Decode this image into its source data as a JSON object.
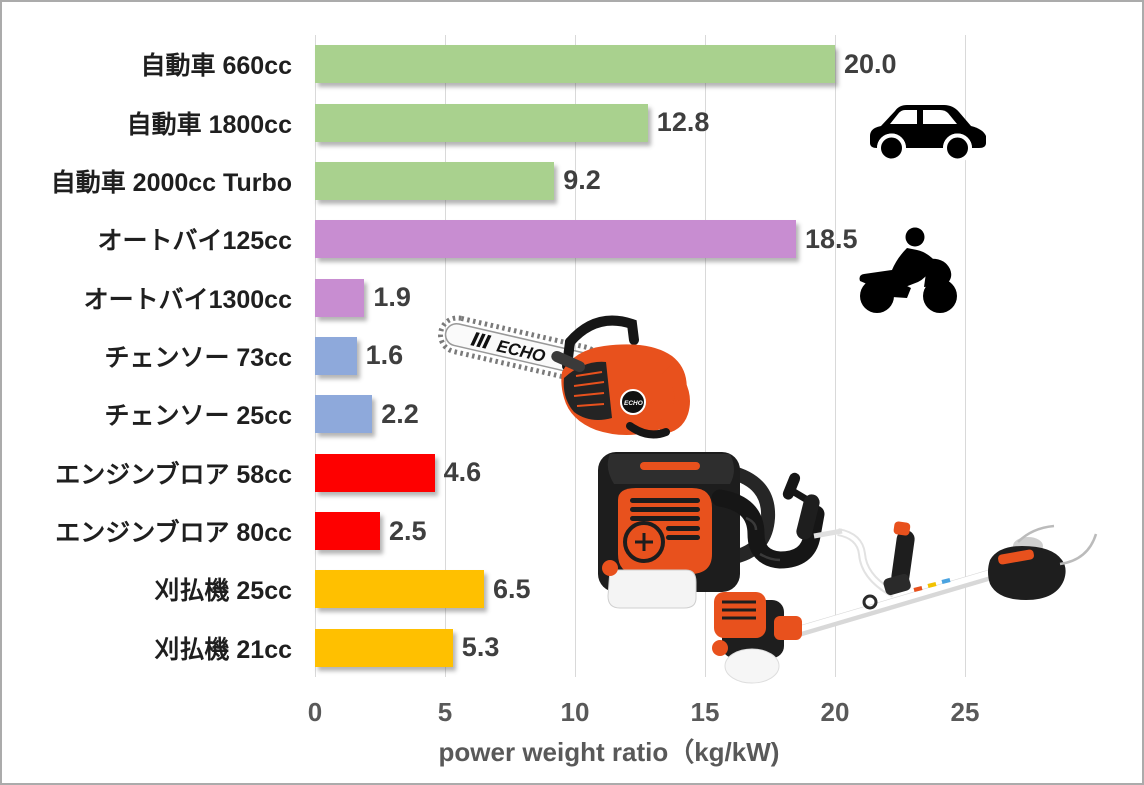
{
  "chart_data": {
    "type": "bar",
    "orientation": "horizontal",
    "title": "",
    "xlabel": "power weight ratio（kg/kW)",
    "ylabel": "",
    "xlim": [
      0,
      25
    ],
    "xticks": [
      0,
      5,
      10,
      15,
      20,
      25
    ],
    "xtick_labels": [
      "0",
      "5",
      "10",
      "15",
      "20",
      "25"
    ],
    "grid": true,
    "legend": false,
    "categories": [
      "自動車 660cc",
      "自動車 1800cc",
      "自動車 2000cc Turbo",
      "オートバイ125cc",
      "オートバイ1300cc",
      "チェンソー 73cc",
      "チェンソー 25cc",
      "エンジンブロア 58cc",
      "エンジンブロア 80cc",
      "刈払機 25cc",
      "刈払機 21cc"
    ],
    "values": [
      20.0,
      12.8,
      9.2,
      18.5,
      1.9,
      1.6,
      2.2,
      4.6,
      2.5,
      6.5,
      5.3
    ],
    "value_labels": [
      "20.0",
      "12.8",
      "9.2",
      "18.5",
      "1.9",
      "1.6",
      "2.2",
      "4.6",
      "2.5",
      "6.5",
      "5.3"
    ],
    "bar_colors": [
      "#A9D18E",
      "#A9D18E",
      "#A9D18E",
      "#C88DD1",
      "#C88DD1",
      "#8EA9DB",
      "#8EA9DB",
      "#FE0000",
      "#FE0000",
      "#FFC000",
      "#FFC000"
    ]
  },
  "decorations": {
    "chainsaw_brand": "ECHO",
    "icons": [
      "car-icon",
      "motorcycle-icon"
    ],
    "photos": [
      "chainsaw-photo",
      "backpack-blower-photo",
      "brush-cutter-photo"
    ]
  },
  "colors": {
    "green": "#A9D18E",
    "purple": "#C88DD1",
    "blue": "#8EA9DB",
    "red": "#FE0000",
    "gold": "#FFC000",
    "grid": "#D9D9D9",
    "axis_text": "#595959",
    "value_text": "#3F3F3F",
    "label_text": "#1F1F1F",
    "equipment_orange": "#E8511D"
  }
}
